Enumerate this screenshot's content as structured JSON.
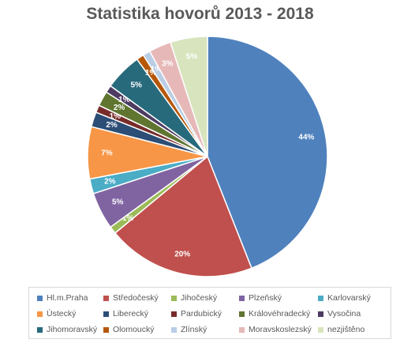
{
  "chart_data": {
    "type": "pie",
    "title": "Statistika hovorů 2013 - 2018",
    "slices": [
      {
        "label": "Hl.m.Praha",
        "value": 44,
        "display": "44%",
        "color": "#4f81bd"
      },
      {
        "label": "Středočeský",
        "value": 20,
        "display": "20%",
        "color": "#c0504d"
      },
      {
        "label": "Jihočeský",
        "value": 1,
        "display": "1%",
        "color": "#9bbb59"
      },
      {
        "label": "Plzeňský",
        "value": 5,
        "display": "5%",
        "color": "#8064a2"
      },
      {
        "label": "Karlovarský",
        "value": 2,
        "display": "2%",
        "color": "#4bacc6"
      },
      {
        "label": "Ústecký",
        "value": 7,
        "display": "7%",
        "color": "#f79646"
      },
      {
        "label": "Liberecký",
        "value": 2,
        "display": "2%",
        "color": "#2c4d75"
      },
      {
        "label": "Pardubický",
        "value": 1,
        "display": "1%",
        "color": "#772c2a"
      },
      {
        "label": "Královéhradecký",
        "value": 2,
        "display": "2%",
        "color": "#5f7530"
      },
      {
        "label": "Vysočina",
        "value": 1,
        "display": "1%",
        "color": "#4d3b62"
      },
      {
        "label": "Jihomoravský",
        "value": 5,
        "display": "5%",
        "color": "#276a7c"
      },
      {
        "label": "Olomoucký",
        "value": 1,
        "display": "1%",
        "color": "#b65708"
      },
      {
        "label": "Zlínský",
        "value": 1,
        "display": "1%",
        "color": "#b9cde5"
      },
      {
        "label": "Moravskoslezský",
        "value": 3,
        "display": "3%",
        "color": "#e6b9b8"
      },
      {
        "label": "nezjištěno",
        "value": 5,
        "display": "5%",
        "color": "#d7e4bd"
      }
    ],
    "legend_position": "bottom"
  }
}
